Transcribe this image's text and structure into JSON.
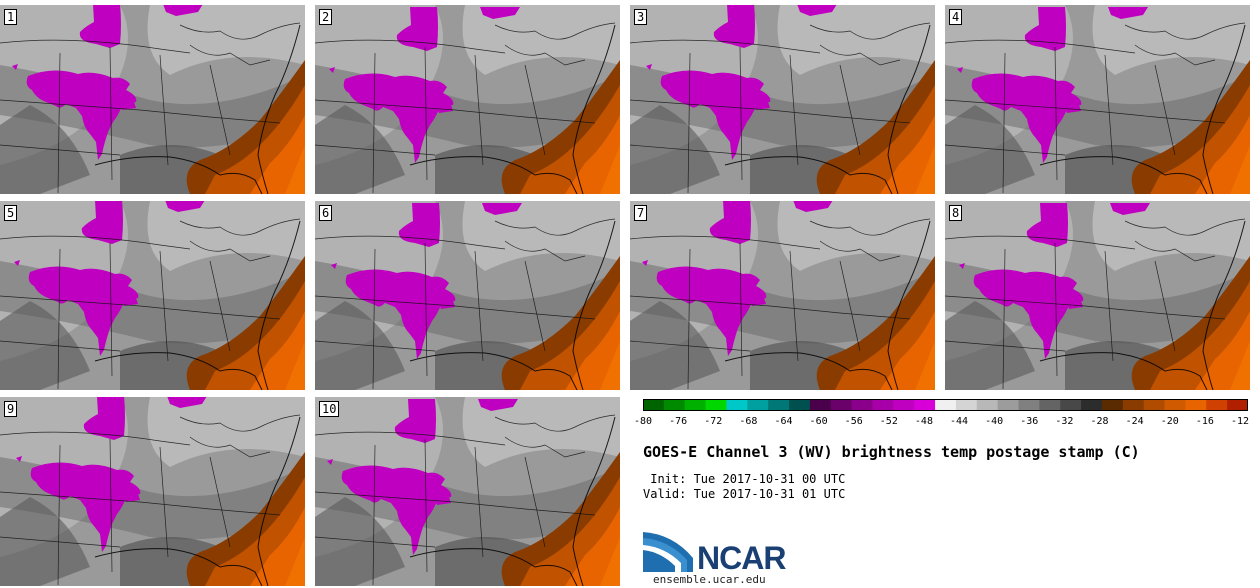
{
  "panels": [
    {
      "label": "1"
    },
    {
      "label": "2"
    },
    {
      "label": "3"
    },
    {
      "label": "4"
    },
    {
      "label": "5"
    },
    {
      "label": "6"
    },
    {
      "label": "7"
    },
    {
      "label": "8"
    },
    {
      "label": "9"
    },
    {
      "label": "10"
    }
  ],
  "colorbar": {
    "colors": [
      "#006400",
      "#008a00",
      "#00b000",
      "#00d700",
      "#00c8c8",
      "#00a0a0",
      "#007878",
      "#005050",
      "#4a004a",
      "#6a006a",
      "#8a008a",
      "#a800a8",
      "#c000c0",
      "#d800d8",
      "#f0f0f0",
      "#d4d4d4",
      "#b8b8b8",
      "#9c9c9c",
      "#808080",
      "#646464",
      "#484848",
      "#2c2c2c",
      "#5a2a00",
      "#8a3c00",
      "#b04c00",
      "#d05a00",
      "#e86400",
      "#d04000",
      "#b02000"
    ],
    "ticks": [
      "-80",
      "-76",
      "-72",
      "-68",
      "-64",
      "-60",
      "-56",
      "-52",
      "-48",
      "-44",
      "-40",
      "-36",
      "-32",
      "-28",
      "-24",
      "-20",
      "-16",
      "-12"
    ]
  },
  "title": "GOES-E Channel 3 (WV) brightness temp postage stamp (C)",
  "init": " Init: Tue 2017-10-31 00 UTC",
  "valid": "Valid: Tue 2017-10-31 01 UTC",
  "logo": {
    "text": "NCAR"
  },
  "site": "ensemble.ucar.edu"
}
